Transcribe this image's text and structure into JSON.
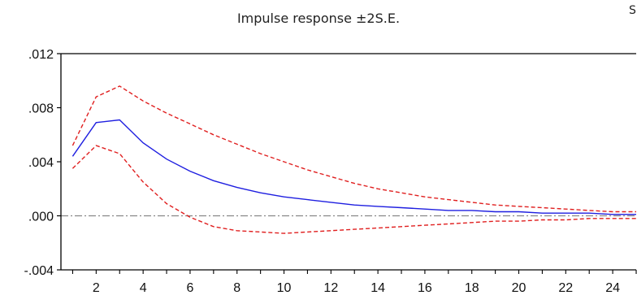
{
  "title": "Impulse response ±2S.E.",
  "corner_text": "S",
  "chart_data": {
    "type": "line",
    "title": "Impulse response ±2S.E.",
    "xlabel": "",
    "ylabel": "",
    "xlim": [
      0.5,
      25
    ],
    "ylim": [
      -0.004,
      0.012
    ],
    "x_ticks": [
      2,
      4,
      6,
      8,
      10,
      12,
      14,
      16,
      18,
      20,
      22,
      24
    ],
    "x_tick_labels": [
      "2",
      "4",
      "6",
      "8",
      "10",
      "12",
      "14",
      "16",
      "18",
      "20",
      "22",
      "24"
    ],
    "y_ticks": [
      -0.004,
      0.0,
      0.004,
      0.008,
      0.012
    ],
    "y_tick_labels": [
      "-.004",
      ".000",
      ".004",
      ".008",
      ".012"
    ],
    "grid": false,
    "legend": "none",
    "zero_line": true,
    "x": [
      1,
      2,
      3,
      4,
      5,
      6,
      7,
      8,
      9,
      10,
      11,
      12,
      13,
      14,
      15,
      16,
      17,
      18,
      19,
      20,
      21,
      22,
      23,
      24,
      25
    ],
    "series": [
      {
        "style": "solid",
        "color": "#1f1fe0",
        "values": [
          0.0044,
          0.0069,
          0.0071,
          0.0054,
          0.0042,
          0.0033,
          0.0026,
          0.0021,
          0.0017,
          0.0014,
          0.0012,
          0.001,
          0.0008,
          0.0007,
          0.0006,
          0.0005,
          0.0004,
          0.0004,
          0.0003,
          0.0003,
          0.0002,
          0.0002,
          0.0002,
          0.0001,
          0.0001
        ]
      },
      {
        "style": "dashed",
        "color": "#e01f1f",
        "values": [
          0.0052,
          0.0088,
          0.0096,
          0.0085,
          0.0076,
          0.0068,
          0.006,
          0.0053,
          0.0046,
          0.004,
          0.0034,
          0.0029,
          0.0024,
          0.002,
          0.0017,
          0.0014,
          0.0012,
          0.001,
          0.0008,
          0.0007,
          0.0006,
          0.0005,
          0.0004,
          0.0003,
          0.0003
        ]
      },
      {
        "style": "dashed",
        "color": "#e01f1f",
        "values": [
          0.0035,
          0.0052,
          0.0046,
          0.0025,
          0.0009,
          -0.0001,
          -0.0008,
          -0.0011,
          -0.0012,
          -0.0013,
          -0.0012,
          -0.0011,
          -0.001,
          -0.0009,
          -0.0008,
          -0.0007,
          -0.0006,
          -0.0005,
          -0.0004,
          -0.0004,
          -0.0003,
          -0.0003,
          -0.0002,
          -0.0002,
          -0.0002
        ]
      }
    ],
    "colors": {
      "zero_line": "#888888",
      "axis": "#000000"
    }
  }
}
